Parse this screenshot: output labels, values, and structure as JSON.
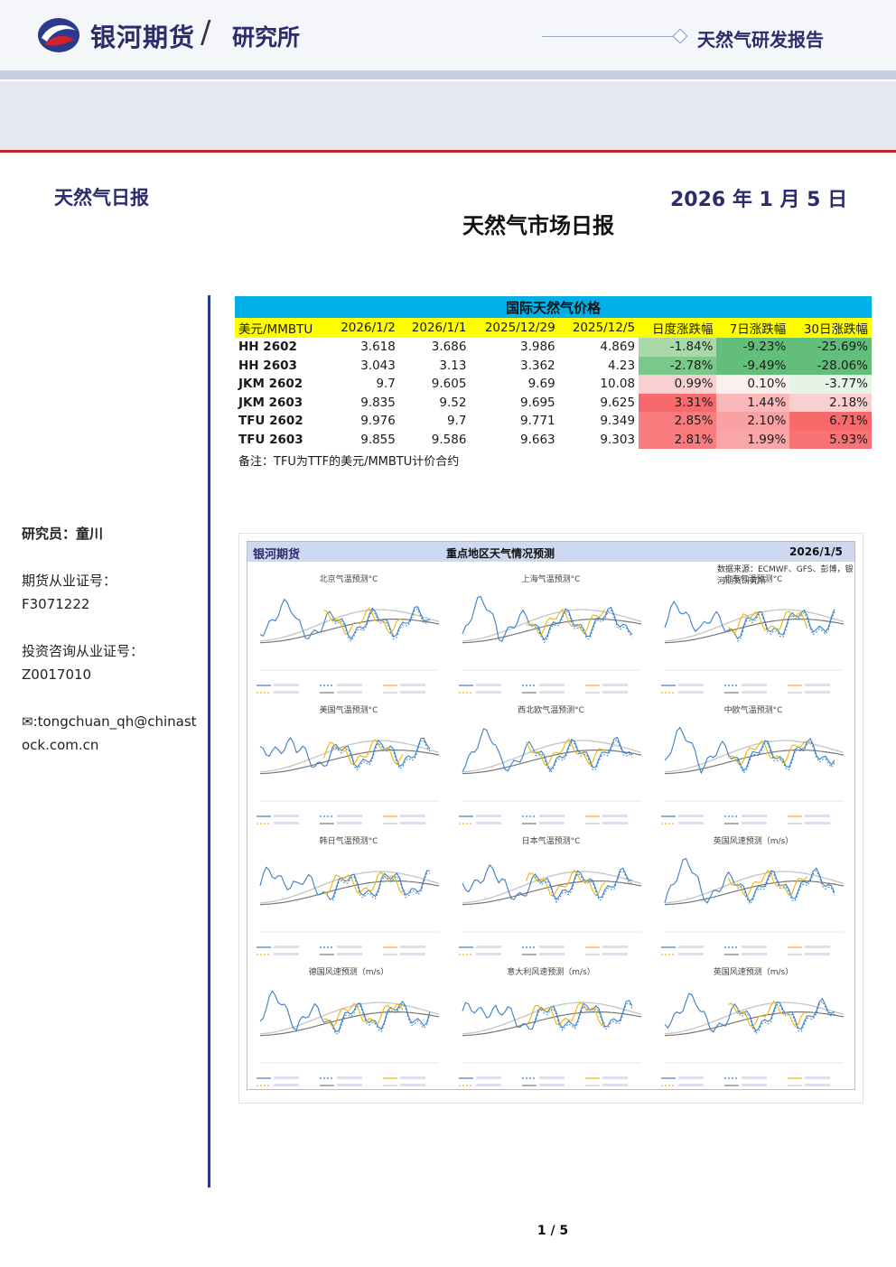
{
  "header": {
    "brand": "银河期货",
    "slash": "/",
    "department": "研究所",
    "report_type": "天然气研发报告"
  },
  "band": {
    "title": "天然气日报",
    "date": "2026 年 1 月 5 日"
  },
  "main_title": "天然气市场日报",
  "sidebar": {
    "analyst": "研究员：童川",
    "license_label": "期货从业证号：",
    "license_no": "F3071222",
    "advisory_label": "投资咨询从业证号：",
    "advisory_no": "Z0017010",
    "email": "✉:tongchuan_qh@chinastock.com.cn"
  },
  "price_table": {
    "caption": "国际天然气价格",
    "headers": [
      "美元/MMBTU",
      "2026/1/2",
      "2026/1/1",
      "2025/12/29",
      "2025/12/5",
      "日度涨跌幅",
      "7日涨跌幅",
      "30日涨跌幅"
    ],
    "rows": [
      {
        "name": "HH 2602",
        "values": [
          "3.618",
          "3.686",
          "3.986",
          "4.869"
        ],
        "changes": [
          "-1.84%",
          "-9.23%",
          "-25.69%"
        ],
        "colors": [
          "#a9d8a9",
          "#63be7b",
          "#63be7b"
        ]
      },
      {
        "name": "HH 2603",
        "values": [
          "3.043",
          "3.13",
          "3.362",
          "4.23"
        ],
        "changes": [
          "-2.78%",
          "-9.49%",
          "-28.06%"
        ],
        "colors": [
          "#7ac98a",
          "#63be7b",
          "#63be7b"
        ]
      },
      {
        "name": "JKM 2602",
        "values": [
          "9.7",
          "9.605",
          "9.69",
          "10.08"
        ],
        "changes": [
          "0.99%",
          "0.10%",
          "-3.77%"
        ],
        "colors": [
          "#f8d0d2",
          "#fbf0f0",
          "#e6f4e7"
        ]
      },
      {
        "name": "JKM 2603",
        "values": [
          "9.835",
          "9.52",
          "9.695",
          "9.625"
        ],
        "changes": [
          "3.31%",
          "1.44%",
          "2.18%"
        ],
        "colors": [
          "#f8696b",
          "#fbb8ba",
          "#f8d0d2"
        ]
      },
      {
        "name": "TFU 2602",
        "values": [
          "9.976",
          "9.7",
          "9.771",
          "9.349"
        ],
        "changes": [
          "2.85%",
          "2.10%",
          "6.71%"
        ],
        "colors": [
          "#f87c7e",
          "#f9a1a3",
          "#f8696b"
        ]
      },
      {
        "name": "TFU 2603",
        "values": [
          "9.855",
          "9.586",
          "9.663",
          "9.303"
        ],
        "changes": [
          "2.81%",
          "1.99%",
          "5.93%"
        ],
        "colors": [
          "#f87c7e",
          "#f9a6a8",
          "#f87375"
        ]
      }
    ],
    "note": "备注：TFU为TTF的美元/MMBTU计价合约"
  },
  "weather_panel": {
    "logo": "银河期货",
    "title": "重点地区天气情况预测",
    "date": "2026/1/5",
    "source": "数据来源：ECMWF、GFS、彭博，银河期货研究所",
    "charts": [
      {
        "title": "北京气温预测°C"
      },
      {
        "title": "上海气温预测°C"
      },
      {
        "title": "广东气温预测°C"
      },
      {
        "title": "美国气温预测°C"
      },
      {
        "title": "西北欧气温预测°C"
      },
      {
        "title": "中欧气温预测°C"
      },
      {
        "title": "韩日气温预测°C"
      },
      {
        "title": "日本气温预测°C"
      },
      {
        "title": "英国风速预测（m/s）"
      },
      {
        "title": "德国风速预测（m/s）"
      },
      {
        "title": "意大利风速预测（m/s）"
      },
      {
        "title": "英国风速预测（m/s）"
      }
    ],
    "colors": {
      "ecmwf": "#3a7fc4",
      "gfs": "#f0b400",
      "avg10": "#777777",
      "avg30": "#c8c8c8"
    }
  },
  "page_number": "1 / 5"
}
